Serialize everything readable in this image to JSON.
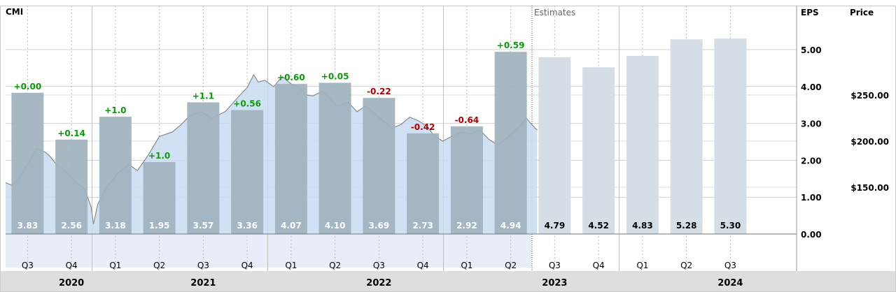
{
  "ticker": "CMI",
  "estimates_label": "Estimates",
  "eps_header": "EPS",
  "price_header": "Price",
  "colors": {
    "actual_bar": "#9fb2be",
    "estimate_bar": "#d5dee4",
    "price_fill": "#c9dcf2",
    "price_line": "#8a8a8a",
    "positive": "#0a9a0a",
    "negative": "#b00000",
    "footer_bg": "#dedede"
  },
  "chart_data": {
    "type": "bar",
    "eps_axis": {
      "ticks": [
        "5.00",
        "4.00",
        "3.00",
        "2.00",
        "1.00",
        "0.00"
      ],
      "values": [
        5,
        4,
        3,
        2,
        1,
        0
      ]
    },
    "price_axis": {
      "ticks": [
        "$250.00",
        "$200.00",
        "$150.00"
      ],
      "values": [
        250,
        200,
        150
      ]
    },
    "quarters": [
      "Q3",
      "Q4",
      "Q1",
      "Q2",
      "Q3",
      "Q4",
      "Q1",
      "Q2",
      "Q3",
      "Q4",
      "Q1",
      "Q2",
      "Q3",
      "Q4",
      "Q1",
      "Q2",
      "Q3"
    ],
    "years": [
      "2020",
      "2021",
      "2022",
      "2023",
      "2024"
    ],
    "actual_eps": [
      3.83,
      2.56,
      3.18,
      1.95,
      3.57,
      3.36,
      4.07,
      4.1,
      3.69,
      2.73,
      2.92,
      4.94
    ],
    "actual_labels": [
      "3.83",
      "2.56",
      "3.18",
      "1.95",
      "3.57",
      "3.36",
      "4.07",
      "4.10",
      "3.69",
      "2.73",
      "2.92",
      "4.94"
    ],
    "surprises": [
      "+0.00",
      "+0.14",
      "+1.0",
      "+1.0",
      "+1.1",
      "+0.56",
      "+0.60",
      "+0.05",
      "-0.22",
      "-0.42",
      "-0.64",
      "+0.59"
    ],
    "estimate_eps": [
      4.79,
      4.52,
      4.83,
      5.28,
      5.3
    ],
    "estimate_labels": [
      "4.79",
      "4.52",
      "4.83",
      "5.28",
      "5.30"
    ],
    "price_series": [
      [
        0,
        155
      ],
      [
        0.15,
        152
      ],
      [
        0.3,
        160
      ],
      [
        0.5,
        175
      ],
      [
        0.7,
        192
      ],
      [
        0.9,
        188
      ],
      [
        1.0,
        184
      ],
      [
        1.15,
        175
      ],
      [
        1.35,
        168
      ],
      [
        1.55,
        158
      ],
      [
        1.8,
        148
      ],
      [
        1.95,
        128
      ],
      [
        2.0,
        110
      ],
      [
        2.1,
        132
      ],
      [
        2.3,
        150
      ],
      [
        2.55,
        165
      ],
      [
        2.8,
        175
      ],
      [
        3.0,
        168
      ],
      [
        3.25,
        185
      ],
      [
        3.5,
        205
      ],
      [
        3.8,
        210
      ],
      [
        4.0,
        218
      ],
      [
        4.2,
        228
      ],
      [
        4.45,
        232
      ],
      [
        4.7,
        225
      ],
      [
        5.0,
        232
      ],
      [
        5.3,
        248
      ],
      [
        5.5,
        258
      ],
      [
        5.65,
        272
      ],
      [
        5.75,
        264
      ],
      [
        5.9,
        266
      ],
      [
        6.1,
        259
      ],
      [
        6.3,
        270
      ],
      [
        6.5,
        262
      ],
      [
        6.7,
        258
      ],
      [
        6.85,
        250
      ],
      [
        7.0,
        249
      ],
      [
        7.2,
        254
      ],
      [
        7.4,
        246
      ],
      [
        7.55,
        238
      ],
      [
        7.8,
        242
      ],
      [
        8.0,
        232
      ],
      [
        8.2,
        238
      ],
      [
        8.4,
        230
      ],
      [
        8.6,
        222
      ],
      [
        8.8,
        214
      ],
      [
        9.0,
        218
      ],
      [
        9.2,
        226
      ],
      [
        9.4,
        222
      ],
      [
        9.6,
        216
      ],
      [
        9.75,
        206
      ],
      [
        9.95,
        200
      ],
      [
        10.15,
        205
      ],
      [
        10.4,
        210
      ],
      [
        10.6,
        208
      ],
      [
        10.8,
        212
      ],
      [
        11.0,
        202
      ],
      [
        11.2,
        196
      ],
      [
        11.4,
        203
      ],
      [
        11.55,
        210
      ],
      [
        11.7,
        216
      ],
      [
        11.85,
        225
      ],
      [
        12.0,
        217
      ],
      [
        12.1,
        212
      ]
    ]
  }
}
